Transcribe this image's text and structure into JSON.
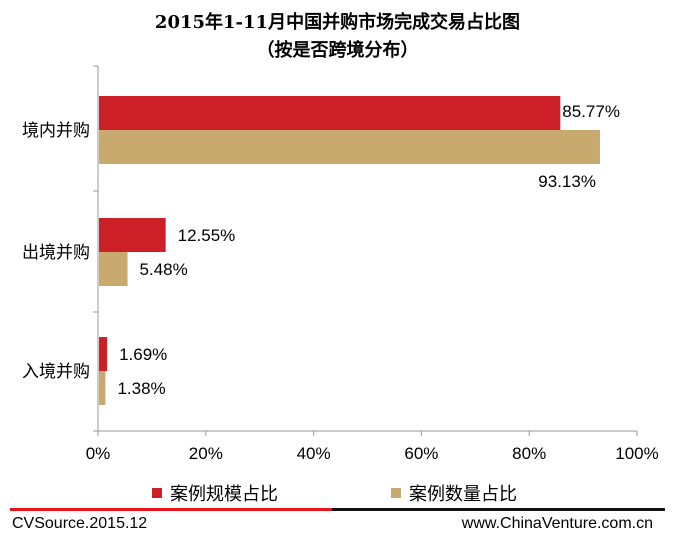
{
  "chart_data": {
    "type": "bar",
    "orientation": "horizontal",
    "title": "2015年1-11月中国并购市场完成交易占比图",
    "subtitle": "（按是否跨境分布）",
    "categories": [
      "境内并购",
      "出境并购",
      "入境并购"
    ],
    "series": [
      {
        "name": "案例规模占比",
        "values": [
          85.77,
          12.55,
          1.69
        ],
        "labels": [
          "85.77%",
          "12.55%",
          "1.69%"
        ],
        "color": "#cc1f27"
      },
      {
        "name": "案例数量占比",
        "values": [
          93.13,
          5.48,
          1.38
        ],
        "labels": [
          "93.13%",
          "5.48%",
          "1.38%"
        ],
        "color": "#c8aa6e"
      }
    ],
    "xlim": [
      0,
      100
    ],
    "x_ticks": [
      "0%",
      "20%",
      "40%",
      "60%",
      "80%",
      "100%"
    ],
    "grid": false,
    "legend_position": "bottom"
  },
  "footer": {
    "source": "CVSource.2015.12",
    "website": "www.ChinaVenture.com.cn"
  }
}
